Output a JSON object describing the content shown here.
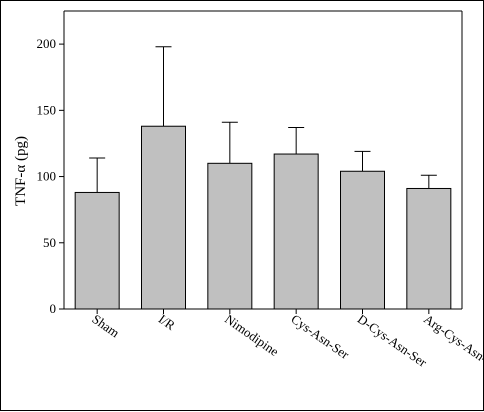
{
  "chart_data": {
    "type": "bar",
    "title": "",
    "xlabel": "",
    "ylabel": "TNF-α (pg)",
    "ylim": [
      0,
      225
    ],
    "yticks": [
      0,
      50,
      100,
      150,
      200
    ],
    "grid": false,
    "categories": [
      "Sham",
      "I/R",
      "Nimodipine",
      "Cys-Asn-Ser",
      "D-Cys-Asn-Ser",
      "Arg-Cys-Asn-Ser"
    ],
    "values": [
      88,
      138,
      110,
      117,
      104,
      91
    ],
    "error_upper": [
      114,
      198,
      141,
      137,
      119,
      101
    ],
    "colors": {
      "bar_fill": "#c0c0c0",
      "bar_stroke": "#000000",
      "axis": "#000000"
    }
  }
}
